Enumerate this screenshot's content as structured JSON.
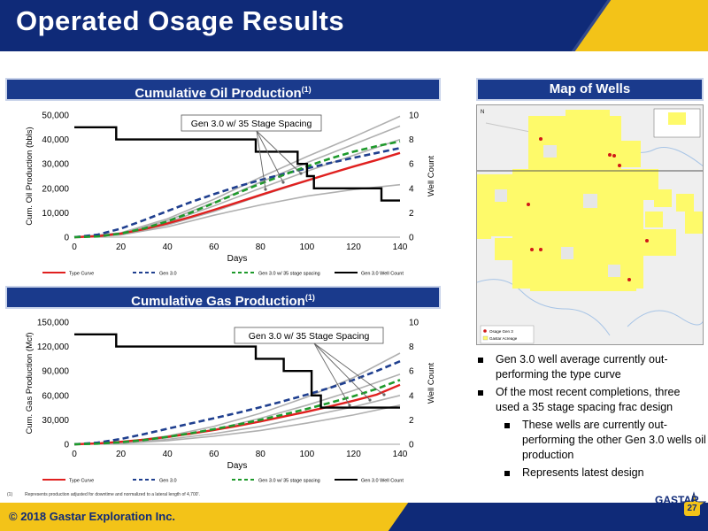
{
  "title": "Operated Osage Results",
  "oil_section": {
    "title": "Cumulative Oil Production",
    "sup": "(1)"
  },
  "gas_section": {
    "title": "Cumulative Gas Production",
    "sup": "(1)"
  },
  "map_section": {
    "title": "Map of Wells"
  },
  "map": {
    "legend": [
      "Osage Gen 3",
      "Gastar Acreage"
    ],
    "north": "N"
  },
  "bullets": [
    {
      "level": 1,
      "text": "Gen 3.0 well average currently out-performing the type curve"
    },
    {
      "level": 1,
      "text": "Of the most recent completions, three used a 35 stage spacing frac design"
    },
    {
      "level": 2,
      "text": "These wells are currently out-performing the other Gen 3.0 wells oil production"
    },
    {
      "level": 2,
      "text": "Represents latest design"
    }
  ],
  "footnote": {
    "marker": "(1)",
    "text": "Represents production adjusted for downtime and normalized to a lateral length of 4,700'."
  },
  "footer": {
    "copyright": "© 2018 Gastar Exploration Inc.",
    "logo": "GASTAR",
    "page": "27"
  },
  "colors": {
    "navy": "#0f2a78",
    "gold": "#f3c318",
    "type_curve": "#e0201f",
    "gen3": "#1f3f8f",
    "gen3_35": "#1e9a2b",
    "well_count": "#000000",
    "individual": "#b0b0b0"
  },
  "chart_data": [
    {
      "type": "line",
      "title": "Cumulative Oil Production",
      "xlabel": "Days",
      "ylabel": "Cum. Oil Production (bbls)",
      "y2label": "Well Count",
      "xlim": [
        0,
        140
      ],
      "ylim": [
        0,
        50000
      ],
      "y2lim": [
        0,
        10
      ],
      "xticks": [
        "0",
        "20",
        "40",
        "60",
        "80",
        "100",
        "120",
        "140"
      ],
      "yticks": [
        "0",
        "10,000",
        "20,000",
        "30,000",
        "40,000",
        "50,000"
      ],
      "y2ticks": [
        "0",
        "2",
        "4",
        "6",
        "8",
        "10"
      ],
      "annotation": "Gen 3.0 w/ 35 Stage Spacing",
      "legend_position": "bottom",
      "series": [
        {
          "name": "Type Curve",
          "style": "solid",
          "color": "#e0201f",
          "axis": "left",
          "x": [
            0,
            10,
            20,
            30,
            40,
            50,
            60,
            70,
            80,
            90,
            100,
            110,
            120,
            130,
            140
          ],
          "y": [
            0,
            400,
            1500,
            3300,
            5600,
            8300,
            11200,
            14200,
            17300,
            20300,
            23200,
            26100,
            28900,
            31600,
            34500
          ]
        },
        {
          "name": "Gen 3.0",
          "style": "dashed",
          "color": "#1f3f8f",
          "axis": "left",
          "x": [
            0,
            10,
            20,
            30,
            40,
            50,
            60,
            70,
            80,
            90,
            100,
            110,
            120,
            130,
            140
          ],
          "y": [
            0,
            1000,
            3500,
            7000,
            10700,
            14300,
            17600,
            20700,
            23400,
            25900,
            28200,
            30400,
            32500,
            34500,
            36500
          ]
        },
        {
          "name": "Gen 3.0 w/ 35 stage spacing",
          "style": "dashed",
          "color": "#1e9a2b",
          "axis": "left",
          "x": [
            0,
            10,
            20,
            30,
            40,
            50,
            60,
            70,
            80,
            90,
            100,
            110,
            120,
            130,
            140
          ],
          "y": [
            0,
            300,
            1500,
            3600,
            6500,
            10000,
            14000,
            18000,
            21900,
            25500,
            29000,
            32200,
            35000,
            37300,
            39200
          ]
        },
        {
          "name": "Gen 3.0 Well Count",
          "style": "step",
          "color": "#000000",
          "axis": "right",
          "x": [
            0,
            18,
            18,
            78,
            78,
            96,
            96,
            100,
            100,
            103,
            103,
            132,
            132,
            140
          ],
          "y": [
            9,
            9,
            8,
            8,
            7,
            7,
            6,
            6,
            5,
            5,
            4,
            4,
            3,
            3
          ]
        },
        {
          "style": "solid",
          "color": "#b0b0b0",
          "axis": "left",
          "x": [
            0,
            20,
            40,
            60,
            80,
            100,
            120,
            140
          ],
          "y": [
            0,
            1800,
            7500,
            15500,
            24500,
            33000,
            41000,
            49500
          ]
        },
        {
          "style": "solid",
          "color": "#b0b0b0",
          "axis": "left",
          "x": [
            0,
            20,
            40,
            60,
            80,
            100,
            120,
            140
          ],
          "y": [
            0,
            1500,
            6800,
            14200,
            22500,
            30500,
            38000,
            45500
          ]
        },
        {
          "style": "solid",
          "color": "#b0b0b0",
          "axis": "left",
          "x": [
            0,
            20,
            40,
            60,
            80,
            100,
            120,
            140
          ],
          "y": [
            0,
            1300,
            6000,
            12800,
            20000,
            27000,
            33500,
            40000
          ]
        },
        {
          "style": "solid",
          "color": "#b0b0b0",
          "axis": "left",
          "x": [
            0,
            20,
            40,
            60,
            80,
            100,
            120,
            140
          ],
          "y": [
            0,
            900,
            4200,
            9000,
            13200,
            16800,
            19500,
            21500
          ]
        },
        {
          "style": "solid",
          "color": "#b0b0b0",
          "axis": "left",
          "x": [
            0,
            20,
            40,
            60,
            80,
            100,
            110
          ],
          "y": [
            0,
            1200,
            5000,
            10500,
            17000,
            23000,
            26000
          ]
        }
      ]
    },
    {
      "type": "line",
      "title": "Cumulative Gas Production",
      "xlabel": "Days",
      "ylabel": "Cum. Gas Production (Mcf)",
      "y2label": "Well Count",
      "xlim": [
        0,
        140
      ],
      "ylim": [
        0,
        150000
      ],
      "y2lim": [
        0,
        10
      ],
      "xticks": [
        "0",
        "20",
        "40",
        "60",
        "80",
        "100",
        "120",
        "140"
      ],
      "yticks": [
        "0",
        "30,000",
        "60,000",
        "90,000",
        "120,000",
        "150,000"
      ],
      "y2ticks": [
        "0",
        "2",
        "4",
        "6",
        "8",
        "10"
      ],
      "annotation": "Gen 3.0 w/ 35 Stage Spacing",
      "legend_position": "bottom",
      "series": [
        {
          "name": "Type Curve",
          "style": "solid",
          "color": "#e0201f",
          "axis": "left",
          "x": [
            0,
            10,
            20,
            30,
            40,
            50,
            60,
            70,
            80,
            90,
            100,
            110,
            120,
            130,
            140
          ],
          "y": [
            0,
            1000,
            3000,
            5700,
            9000,
            13000,
            17500,
            22500,
            28000,
            34000,
            40000,
            46500,
            53500,
            61000,
            73000
          ]
        },
        {
          "name": "Gen 3.0",
          "style": "dashed",
          "color": "#1f3f8f",
          "axis": "left",
          "x": [
            0,
            10,
            20,
            30,
            40,
            50,
            60,
            70,
            80,
            90,
            100,
            110,
            120,
            130,
            140
          ],
          "y": [
            0,
            2000,
            6500,
            12500,
            19000,
            25500,
            32000,
            38500,
            45500,
            53000,
            61000,
            69500,
            79000,
            90000,
            102000
          ]
        },
        {
          "name": "Gen 3.0 w/ 35 stage spacing",
          "style": "dashed",
          "color": "#1e9a2b",
          "axis": "left",
          "x": [
            0,
            10,
            20,
            30,
            40,
            50,
            60,
            70,
            80,
            90,
            100,
            110,
            120,
            130,
            140
          ],
          "y": [
            0,
            800,
            2500,
            5200,
            9000,
            13500,
            18500,
            24000,
            30000,
            36500,
            43500,
            51000,
            59000,
            68000,
            79000
          ]
        },
        {
          "name": "Gen 3.0 Well Count",
          "style": "step",
          "color": "#000000",
          "axis": "right",
          "x": [
            0,
            18,
            18,
            78,
            78,
            90,
            90,
            102,
            102,
            106,
            106,
            134,
            134,
            140
          ],
          "y": [
            9,
            9,
            8,
            8,
            7,
            7,
            6,
            6,
            4,
            4,
            3,
            3,
            3,
            3
          ]
        },
        {
          "style": "solid",
          "color": "#b0b0b0",
          "axis": "left",
          "x": [
            0,
            20,
            40,
            60,
            80,
            100,
            120,
            140
          ],
          "y": [
            0,
            2500,
            10000,
            22000,
            38000,
            58000,
            82000,
            112000
          ]
        },
        {
          "style": "solid",
          "color": "#b0b0b0",
          "axis": "left",
          "x": [
            0,
            20,
            40,
            60,
            80,
            100,
            120,
            140
          ],
          "y": [
            0,
            2000,
            8000,
            18000,
            32000,
            48000,
            66000,
            86000
          ]
        },
        {
          "style": "solid",
          "color": "#b0b0b0",
          "axis": "left",
          "x": [
            0,
            20,
            40,
            60,
            80,
            100,
            120,
            140
          ],
          "y": [
            0,
            1500,
            6000,
            13000,
            22000,
            34000,
            46000,
            60000
          ]
        },
        {
          "style": "solid",
          "color": "#b0b0b0",
          "axis": "left",
          "x": [
            0,
            20,
            40,
            60,
            80,
            100,
            120,
            140
          ],
          "y": [
            0,
            1200,
            4500,
            10000,
            17000,
            26000,
            36000,
            48000
          ]
        }
      ]
    }
  ]
}
